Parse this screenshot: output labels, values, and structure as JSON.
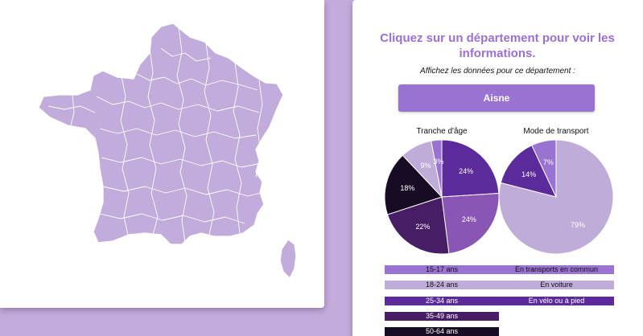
{
  "map": {
    "fill": "#c1acdb",
    "border": "#ffffff"
  },
  "info": {
    "headline": "Cliquez sur un département pour voir les informations.",
    "subtitle": "Affichez les données pour ce département :",
    "selected_department": "Aisne",
    "accent": "#9b6fd3",
    "button_color": "#9a72d2"
  },
  "chart_data": [
    {
      "type": "pie",
      "title": "Tranche d'âge",
      "slices": [
        {
          "label": "15-17 ans",
          "value": 24,
          "display": "24%",
          "color": "#5b2a9b"
        },
        {
          "label": "18-24 ans",
          "value": 24,
          "display": "24%",
          "color": "#8a56b6"
        },
        {
          "label": "25-34 ans",
          "value": 22,
          "display": "22%",
          "color": "#471d66"
        },
        {
          "label": "35-49 ans",
          "value": 18,
          "display": "18%",
          "color": "#180c24"
        },
        {
          "label": "50-64 ans",
          "value": 9,
          "display": "9%",
          "color": "#c0acd9"
        },
        {
          "label": "",
          "value": 3,
          "display": "3%",
          "color": "#9a72d2"
        }
      ]
    },
    {
      "type": "pie",
      "title": "Mode de transport",
      "slices": [
        {
          "label": "En voiture",
          "value": 79,
          "display": "79%",
          "color": "#c0acd9"
        },
        {
          "label": "En transports en commun",
          "value": 14,
          "display": "14%",
          "color": "#5b2a9b"
        },
        {
          "label": "En vélo ou à pied",
          "value": 7,
          "display": "7%",
          "color": "#9a72d2"
        }
      ]
    }
  ],
  "legend": {
    "age": [
      "15-17 ans",
      "18-24 ans",
      "25-34 ans",
      "35-49 ans",
      "50-64 ans"
    ],
    "age_colors": [
      "#9a72d2",
      "#c0acd9",
      "#5b2a9b",
      "#471d66",
      "#180c24"
    ],
    "transport": [
      "En transports en commun",
      "En voiture",
      "En vélo ou à pied"
    ],
    "transport_colors": [
      "#9a72d2",
      "#c0acd9",
      "#5b2a9b"
    ]
  }
}
